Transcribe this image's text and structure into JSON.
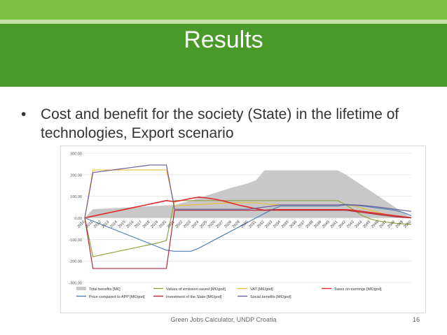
{
  "slide": {
    "title": "Results",
    "bullet_symbol": "•",
    "bullet_text": "Cost and benefit for the society (State) in the lifetime of technologies, Export scenario",
    "footer_text": "Green Jobs Calculator, UNDP Croatia",
    "page_number": "16"
  },
  "colors": {
    "band": "#4a9a2a",
    "band_light": "#7cc242"
  },
  "chart_data": {
    "type": "line",
    "x": [
      "2010",
      "2011",
      "2012",
      "2013",
      "2014",
      "2015",
      "2016",
      "2017",
      "2018",
      "2019",
      "2020",
      "2021",
      "2022",
      "2023",
      "2024",
      "2025",
      "2026",
      "2027",
      "2028",
      "2029",
      "2030",
      "2031",
      "2032",
      "2033",
      "2034",
      "2035",
      "2036",
      "2037",
      "2038",
      "2039",
      "2040",
      "2041",
      "2042",
      "2043",
      "2044",
      "2045",
      "2046",
      "2047",
      "2048",
      "2049",
      "2050"
    ],
    "ylim": [
      -300,
      300
    ],
    "yticks": [
      "300,00",
      "200,00",
      "100,00",
      "0,00",
      "-100,00",
      "-200,00",
      "-300,00"
    ],
    "ytick_values": [
      300,
      200,
      100,
      0,
      -100,
      -200,
      -300
    ],
    "grid": true,
    "legend_position": "bottom",
    "series": [
      {
        "name": "Total benefits [M€]",
        "kind": "area",
        "color": "#c8c8c8",
        "values": [
          0,
          40,
          42,
          44,
          46,
          48,
          50,
          52,
          54,
          56,
          58,
          60,
          70,
          80,
          92,
          104,
          116,
          128,
          140,
          150,
          160,
          175,
          220,
          220,
          220,
          220,
          220,
          220,
          220,
          220,
          220,
          220,
          200,
          175,
          150,
          125,
          100,
          75,
          50,
          25,
          0
        ]
      },
      {
        "name": "Values of emission saved [M€/god]",
        "kind": "line",
        "color": "#8da63a",
        "values": [
          0,
          -180,
          -172,
          -164,
          -156,
          -148,
          -140,
          -132,
          -124,
          -116,
          -105,
          80,
          80,
          80,
          80,
          80,
          80,
          80,
          80,
          80,
          80,
          80,
          80,
          80,
          80,
          80,
          80,
          80,
          80,
          80,
          80,
          80,
          60,
          35,
          10,
          -5,
          -15,
          -20,
          -25,
          -28,
          -30
        ]
      },
      {
        "name": "VAT [M€/god]",
        "kind": "line",
        "color": "#e8c23a",
        "values": [
          0,
          222,
          222,
          222,
          222,
          222,
          222,
          222,
          222,
          222,
          222,
          55,
          58,
          60,
          62,
          64,
          66,
          68,
          70,
          70,
          70,
          70,
          65,
          62,
          60,
          60,
          60,
          60,
          60,
          60,
          60,
          60,
          60,
          55,
          45,
          35,
          25,
          15,
          10,
          5,
          2
        ]
      },
      {
        "name": "Taxes on earnings [M€/god]",
        "kind": "line",
        "color": "#e02828",
        "values": [
          0,
          8,
          16,
          24,
          32,
          40,
          48,
          56,
          64,
          72,
          80,
          75,
          82,
          90,
          96,
          92,
          86,
          78,
          68,
          58,
          50,
          42,
          35,
          38,
          38,
          38,
          38,
          38,
          38,
          38,
          38,
          38,
          38,
          35,
          30,
          25,
          20,
          15,
          10,
          5,
          0
        ]
      },
      {
        "name": "Price compared to APP [M€/god]",
        "kind": "line",
        "color": "#4f7fb6",
        "values": [
          0,
          -15,
          -30,
          -45,
          -60,
          -75,
          -90,
          -105,
          -120,
          -135,
          -150,
          -155,
          -155,
          -155,
          -140,
          -120,
          -100,
          -80,
          -60,
          -40,
          -20,
          0,
          20,
          40,
          55,
          55,
          55,
          55,
          55,
          55,
          55,
          55,
          60,
          58,
          55,
          50,
          45,
          40,
          35,
          25,
          10
        ]
      },
      {
        "name": "Investment of the State [M€/god]",
        "kind": "line",
        "color": "#b02a3a",
        "values": [
          0,
          -235,
          -235,
          -235,
          -235,
          -235,
          -235,
          -235,
          -235,
          -235,
          -235,
          35,
          35,
          35,
          35,
          35,
          35,
          35,
          35,
          35,
          35,
          35,
          35,
          35,
          35,
          35,
          35,
          35,
          35,
          35,
          35,
          35,
          35,
          30,
          25,
          20,
          15,
          10,
          5,
          2,
          0
        ]
      },
      {
        "name": "Social benefits [M€/god]",
        "kind": "line",
        "color": "#6e5a9c",
        "values": [
          0,
          210,
          215,
          220,
          225,
          230,
          235,
          240,
          245,
          245,
          245,
          40,
          40,
          40,
          40,
          40,
          40,
          40,
          40,
          40,
          40,
          45,
          50,
          55,
          60,
          60,
          60,
          60,
          60,
          60,
          60,
          60,
          62,
          60,
          58,
          54,
          50,
          45,
          40,
          35,
          30
        ]
      }
    ]
  }
}
